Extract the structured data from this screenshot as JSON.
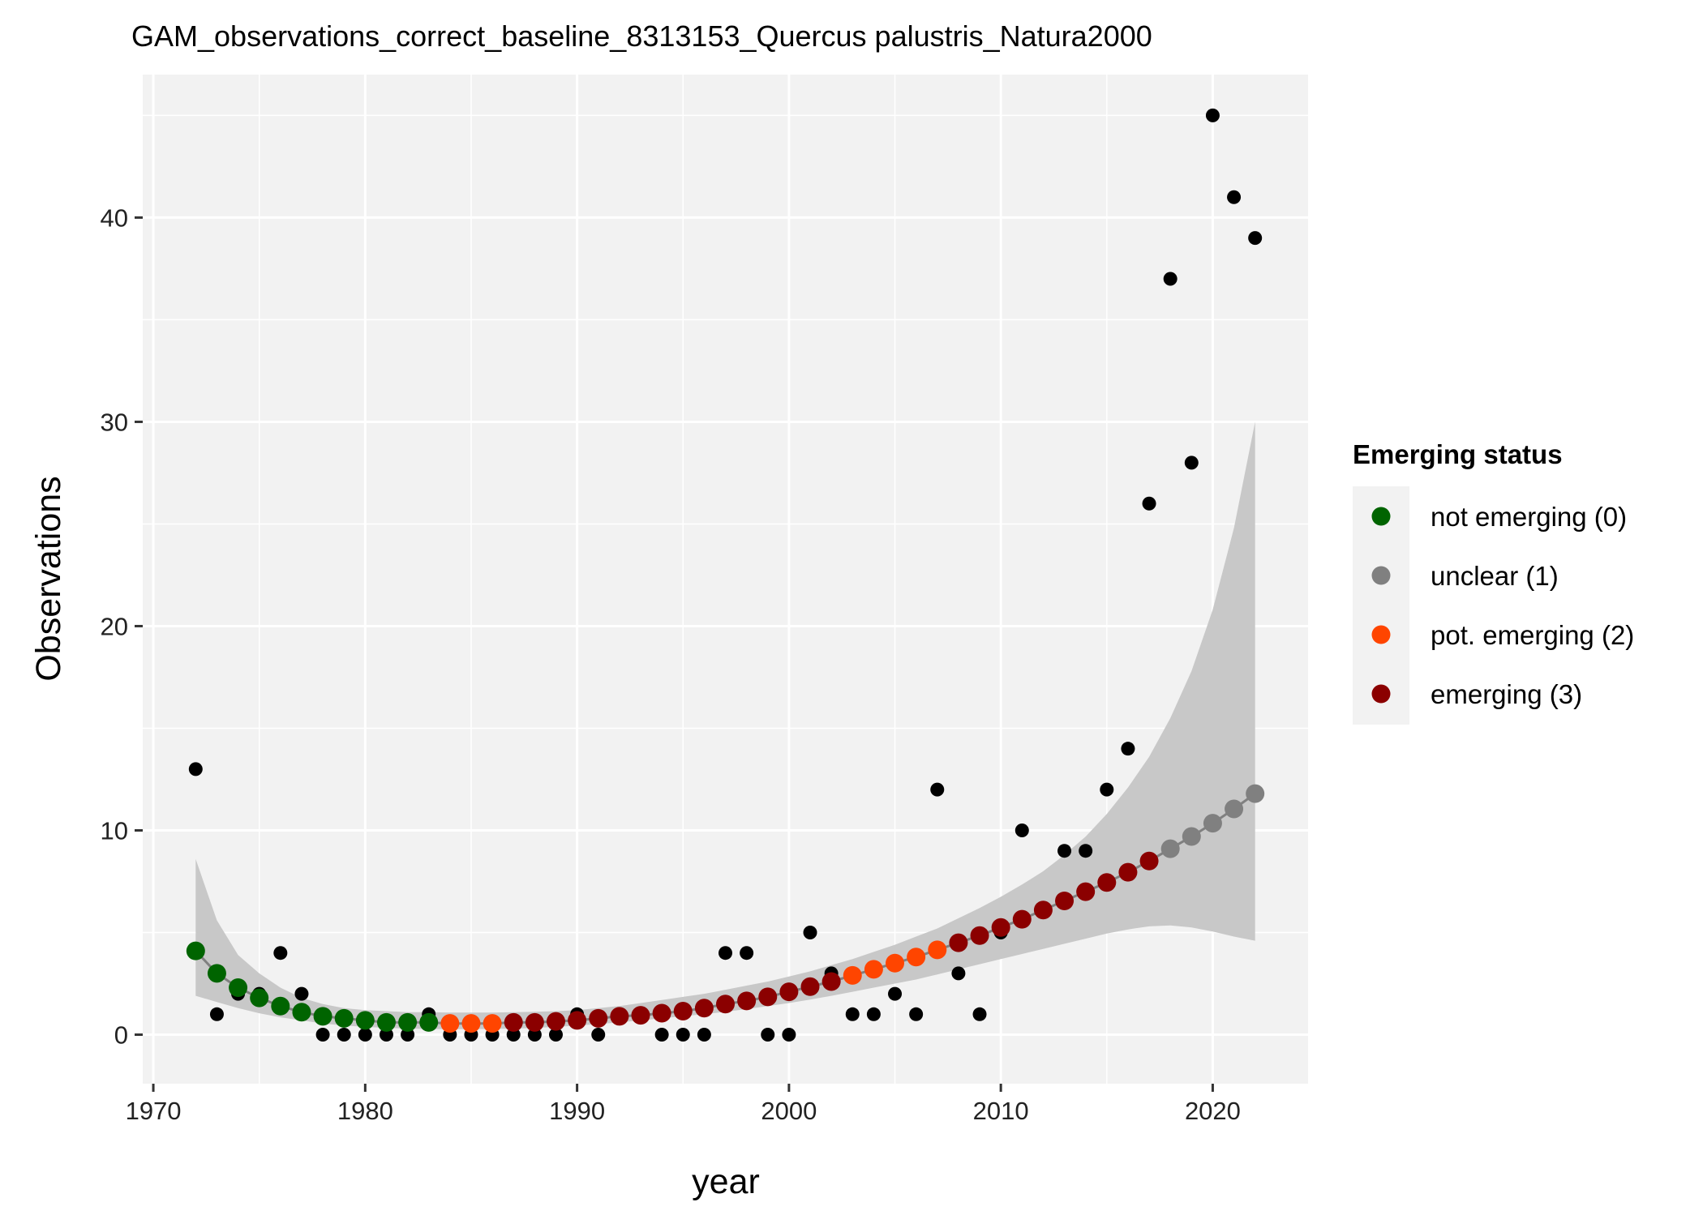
{
  "chart_data": {
    "type": "scatter",
    "title": "GAM_observations_correct_baseline_8313153_Quercus palustris_Natura2000",
    "xlabel": "year",
    "ylabel": "Observations",
    "xlim": [
      1969.5,
      2024.5
    ],
    "ylim": [
      -2.4,
      47.0
    ],
    "xticks": [
      1970,
      1980,
      1990,
      2000,
      2010,
      2020
    ],
    "yticks": [
      0,
      10,
      20,
      30,
      40
    ],
    "grid": true,
    "legend": {
      "title": "Emerging status",
      "position": "right",
      "entries": [
        {
          "label": "not emerging (0)",
          "color": "#006400"
        },
        {
          "label": "unclear (1)",
          "color": "#808080"
        },
        {
          "label": "pot. emerging (2)",
          "color": "#FF4500"
        },
        {
          "label": "emerging (3)",
          "color": "#8B0000"
        }
      ]
    },
    "colors": {
      "panel": "#f2f2f2",
      "gridline": "#ffffff",
      "ribbon": "#c8c8c8",
      "fit_line": "#808080",
      "observed": "#000000",
      "status_0": "#006400",
      "status_1": "#808080",
      "status_2": "#FF4500",
      "status_3": "#8B0000"
    },
    "observed": {
      "x": [
        1972,
        1973,
        1974,
        1975,
        1976,
        1977,
        1978,
        1979,
        1980,
        1981,
        1982,
        1983,
        1984,
        1985,
        1986,
        1987,
        1988,
        1989,
        1990,
        1991,
        1992,
        1993,
        1994,
        1995,
        1996,
        1997,
        1998,
        1999,
        2000,
        2001,
        2002,
        2003,
        2004,
        2005,
        2006,
        2007,
        2008,
        2009,
        2010,
        2011,
        2012,
        2013,
        2014,
        2015,
        2016,
        2017,
        2018,
        2019,
        2020,
        2021,
        2022
      ],
      "y": [
        13,
        1,
        2,
        2,
        4,
        2,
        0,
        0,
        0,
        0,
        0,
        1,
        0,
        0,
        0,
        0,
        0,
        0,
        1,
        0,
        1,
        1,
        0,
        0,
        0,
        4,
        4,
        0,
        0,
        5,
        3,
        1,
        1,
        2,
        1,
        12,
        3,
        1,
        5,
        10,
        6,
        9,
        9,
        12,
        14,
        26,
        37,
        28,
        45,
        41,
        39
      ]
    },
    "fitted": {
      "x": [
        1972,
        1973,
        1974,
        1975,
        1976,
        1977,
        1978,
        1979,
        1980,
        1981,
        1982,
        1983,
        1984,
        1985,
        1986,
        1987,
        1988,
        1989,
        1990,
        1991,
        1992,
        1993,
        1994,
        1995,
        1996,
        1997,
        1998,
        1999,
        2000,
        2001,
        2002,
        2003,
        2004,
        2005,
        2006,
        2007,
        2008,
        2009,
        2010,
        2011,
        2012,
        2013,
        2014,
        2015,
        2016,
        2017,
        2018,
        2019,
        2020,
        2021,
        2022
      ],
      "y": [
        4.1,
        3.0,
        2.3,
        1.8,
        1.4,
        1.1,
        0.9,
        0.8,
        0.7,
        0.6,
        0.6,
        0.6,
        0.55,
        0.55,
        0.55,
        0.6,
        0.6,
        0.65,
        0.7,
        0.8,
        0.9,
        0.95,
        1.05,
        1.15,
        1.3,
        1.5,
        1.65,
        1.85,
        2.1,
        2.35,
        2.6,
        2.9,
        3.2,
        3.5,
        3.8,
        4.15,
        4.5,
        4.85,
        5.25,
        5.65,
        6.1,
        6.55,
        7.0,
        7.45,
        7.95,
        8.5,
        9.1,
        9.7,
        10.35,
        11.05,
        11.8
      ],
      "lower": [
        1.9,
        1.6,
        1.3,
        1.05,
        0.85,
        0.7,
        0.55,
        0.45,
        0.38,
        0.33,
        0.3,
        0.28,
        0.27,
        0.27,
        0.28,
        0.3,
        0.33,
        0.38,
        0.44,
        0.52,
        0.6,
        0.7,
        0.8,
        0.9,
        1.0,
        1.12,
        1.25,
        1.4,
        1.55,
        1.72,
        1.9,
        2.1,
        2.3,
        2.5,
        2.7,
        2.95,
        3.2,
        3.45,
        3.7,
        3.95,
        4.2,
        4.45,
        4.7,
        4.95,
        5.15,
        5.3,
        5.35,
        5.25,
        5.05,
        4.8,
        4.6
      ],
      "upper": [
        8.6,
        5.6,
        3.9,
        3.0,
        2.3,
        1.8,
        1.5,
        1.3,
        1.2,
        1.15,
        1.1,
        1.1,
        1.08,
        1.08,
        1.08,
        1.1,
        1.12,
        1.15,
        1.2,
        1.3,
        1.4,
        1.55,
        1.7,
        1.85,
        2.0,
        2.2,
        2.4,
        2.6,
        2.85,
        3.1,
        3.4,
        3.7,
        4.05,
        4.4,
        4.8,
        5.2,
        5.7,
        6.2,
        6.75,
        7.35,
        8.0,
        8.8,
        9.7,
        10.8,
        12.1,
        13.6,
        15.5,
        17.8,
        20.8,
        24.8,
        30.0
      ],
      "status": [
        0,
        0,
        0,
        0,
        0,
        0,
        0,
        0,
        0,
        0,
        0,
        0,
        2,
        2,
        2,
        3,
        3,
        3,
        3,
        3,
        3,
        3,
        3,
        3,
        3,
        3,
        3,
        3,
        3,
        3,
        3,
        2,
        2,
        2,
        2,
        2,
        3,
        3,
        3,
        3,
        3,
        3,
        3,
        3,
        3,
        3,
        1,
        1,
        1,
        1,
        1
      ]
    }
  }
}
